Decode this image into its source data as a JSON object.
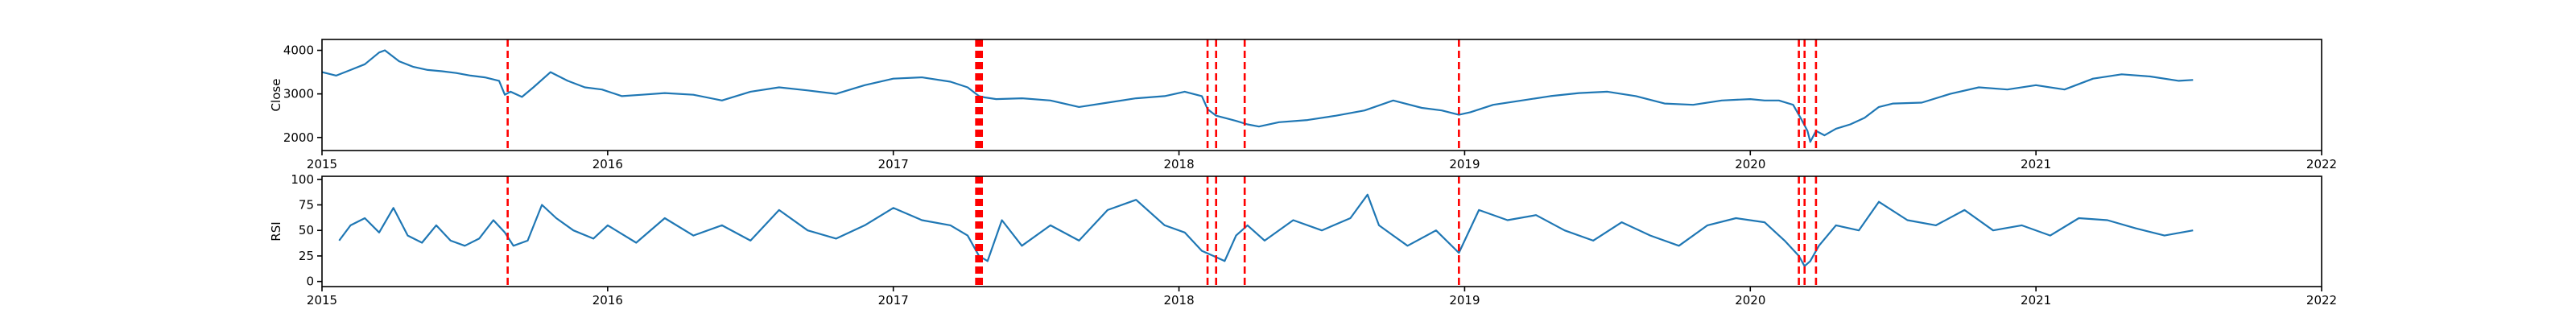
{
  "colors": {
    "series": "#1f77b4",
    "events": "#ff0000"
  },
  "chart_data": [
    {
      "type": "line",
      "title": "",
      "xlabel": "",
      "ylabel": "Close",
      "xlim": [
        2015.0,
        2022.0
      ],
      "ylim": [
        1700,
        4250
      ],
      "x_ticks": [
        2015,
        2016,
        2017,
        2018,
        2019,
        2020,
        2021,
        2022
      ],
      "y_ticks": [
        2000,
        3000,
        4000
      ],
      "grid": false,
      "series": [
        {
          "x": [
            2015.0,
            2015.05,
            2015.1,
            2015.15,
            2015.2,
            2015.22,
            2015.27,
            2015.32,
            2015.37,
            2015.42,
            2015.47,
            2015.52,
            2015.57,
            2015.62,
            2015.64,
            2015.66,
            2015.7,
            2015.74,
            2015.8,
            2015.86,
            2015.92,
            2015.98,
            2016.05,
            2016.12,
            2016.2,
            2016.3,
            2016.4,
            2016.5,
            2016.6,
            2016.7,
            2016.8,
            2016.9,
            2017.0,
            2017.1,
            2017.2,
            2017.26,
            2017.3,
            2017.32,
            2017.36,
            2017.45,
            2017.55,
            2017.65,
            2017.75,
            2017.85,
            2017.95,
            2018.02,
            2018.08,
            2018.1,
            2018.13,
            2018.16,
            2018.2,
            2018.24,
            2018.28,
            2018.35,
            2018.45,
            2018.55,
            2018.65,
            2018.75,
            2018.85,
            2018.92,
            2018.98,
            2019.02,
            2019.1,
            2019.2,
            2019.3,
            2019.4,
            2019.5,
            2019.6,
            2019.7,
            2019.8,
            2019.9,
            2020.0,
            2020.05,
            2020.1,
            2020.15,
            2020.18,
            2020.2,
            2020.21,
            2020.23,
            2020.26,
            2020.3,
            2020.35,
            2020.4,
            2020.45,
            2020.5,
            2020.6,
            2020.7,
            2020.8,
            2020.9,
            2021.0,
            2021.1,
            2021.2,
            2021.3,
            2021.4,
            2021.5,
            2021.55
          ],
          "y": [
            3500,
            3420,
            3550,
            3680,
            3950,
            4000,
            3750,
            3620,
            3550,
            3520,
            3480,
            3420,
            3380,
            3300,
            2980,
            3050,
            2930,
            3150,
            3500,
            3300,
            3150,
            3100,
            2950,
            2980,
            3020,
            2980,
            2850,
            3050,
            3150,
            3080,
            3000,
            3200,
            3350,
            3380,
            3280,
            3150,
            2950,
            2920,
            2880,
            2900,
            2850,
            2700,
            2800,
            2900,
            2950,
            3050,
            2950,
            2650,
            2500,
            2450,
            2380,
            2300,
            2250,
            2350,
            2400,
            2500,
            2620,
            2850,
            2680,
            2620,
            2520,
            2580,
            2750,
            2850,
            2950,
            3020,
            3050,
            2950,
            2780,
            2750,
            2850,
            2880,
            2850,
            2850,
            2750,
            2400,
            2150,
            1900,
            2150,
            2050,
            2200,
            2300,
            2450,
            2700,
            2780,
            2800,
            3000,
            3150,
            3100,
            3200,
            3100,
            3350,
            3450,
            3400,
            3300,
            3320
          ]
        }
      ],
      "events": [
        2015.65,
        2017.29,
        2017.295,
        2017.3,
        2017.305,
        2017.31,
        2018.1,
        2018.13,
        2018.23,
        2018.98,
        2020.17,
        2020.19,
        2020.23
      ]
    },
    {
      "type": "line",
      "title": "",
      "xlabel": "",
      "ylabel": "RSI",
      "xlim": [
        2015.0,
        2022.0
      ],
      "ylim": [
        -5,
        103
      ],
      "x_ticks": [
        2015,
        2016,
        2017,
        2018,
        2019,
        2020,
        2021,
        2022
      ],
      "y_ticks": [
        0,
        25,
        50,
        75,
        100
      ],
      "grid": false,
      "series": [
        {
          "x": [
            2015.06,
            2015.1,
            2015.15,
            2015.2,
            2015.25,
            2015.3,
            2015.35,
            2015.4,
            2015.45,
            2015.5,
            2015.55,
            2015.6,
            2015.64,
            2015.67,
            2015.72,
            2015.77,
            2015.82,
            2015.88,
            2015.95,
            2016.0,
            2016.1,
            2016.2,
            2016.3,
            2016.4,
            2016.5,
            2016.6,
            2016.7,
            2016.8,
            2016.9,
            2017.0,
            2017.1,
            2017.2,
            2017.26,
            2017.3,
            2017.33,
            2017.38,
            2017.45,
            2017.55,
            2017.65,
            2017.75,
            2017.85,
            2017.95,
            2018.02,
            2018.08,
            2018.12,
            2018.16,
            2018.2,
            2018.24,
            2018.3,
            2018.4,
            2018.5,
            2018.6,
            2018.66,
            2018.7,
            2018.75,
            2018.8,
            2018.9,
            2018.98,
            2019.05,
            2019.15,
            2019.25,
            2019.35,
            2019.45,
            2019.55,
            2019.65,
            2019.75,
            2019.85,
            2019.95,
            2020.05,
            2020.12,
            2020.17,
            2020.19,
            2020.21,
            2020.24,
            2020.3,
            2020.38,
            2020.45,
            2020.55,
            2020.65,
            2020.75,
            2020.85,
            2020.95,
            2021.05,
            2021.15,
            2021.25,
            2021.35,
            2021.45,
            2021.55
          ],
          "y": [
            40,
            55,
            62,
            48,
            72,
            45,
            38,
            55,
            40,
            35,
            42,
            60,
            48,
            35,
            40,
            75,
            62,
            50,
            42,
            55,
            38,
            62,
            45,
            55,
            40,
            70,
            50,
            42,
            55,
            72,
            60,
            55,
            45,
            25,
            20,
            60,
            35,
            55,
            40,
            70,
            80,
            55,
            48,
            30,
            25,
            20,
            45,
            55,
            40,
            60,
            50,
            62,
            85,
            55,
            45,
            35,
            50,
            28,
            70,
            60,
            65,
            50,
            40,
            58,
            45,
            35,
            55,
            62,
            58,
            40,
            25,
            15,
            20,
            35,
            55,
            50,
            78,
            60,
            55,
            70,
            50,
            55,
            45,
            62,
            60,
            52,
            45,
            50
          ]
        }
      ],
      "events": [
        2015.65,
        2017.29,
        2017.295,
        2017.3,
        2017.305,
        2017.31,
        2018.1,
        2018.13,
        2018.23,
        2018.98,
        2020.17,
        2020.19,
        2020.23
      ]
    }
  ]
}
